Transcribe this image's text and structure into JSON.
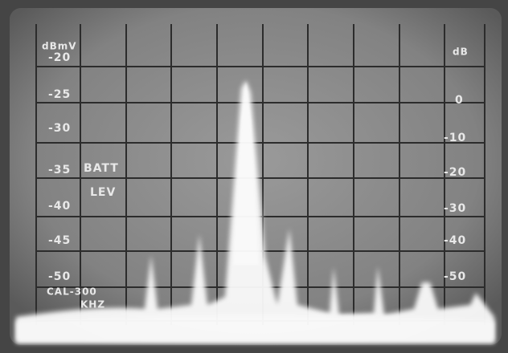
{
  "left_scale": {
    "unit": "dBmV",
    "labels": [
      "-20",
      "-25",
      "-30",
      "-35",
      "-40",
      "-45",
      "-50"
    ]
  },
  "right_scale": {
    "unit": "dB",
    "labels": [
      "0",
      "-10",
      "-20",
      "-30",
      "-40",
      "-50"
    ]
  },
  "annotations": {
    "batt": "BATT",
    "lev": "LEV",
    "cal": "CAL-300",
    "khz": "KHZ"
  }
}
